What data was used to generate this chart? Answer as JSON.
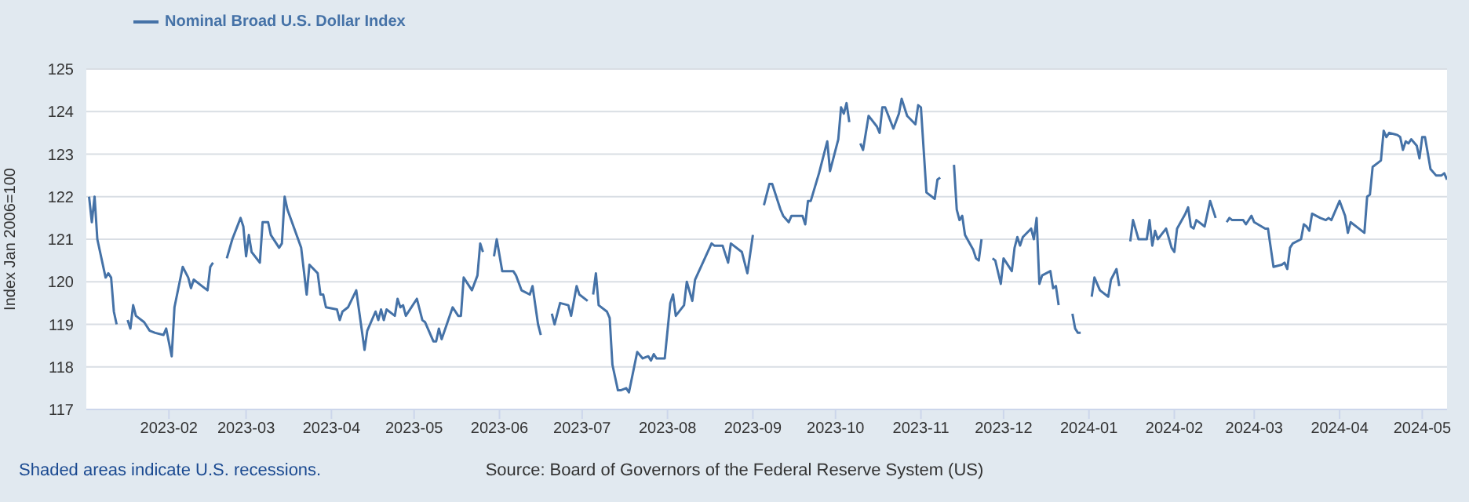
{
  "chart_data": {
    "type": "line",
    "ylabel": "Index Jan 2006=100",
    "x": [
      "2023-01-03",
      "2023-01-04",
      "2023-01-05",
      "2023-01-06",
      "2023-01-09",
      "2023-01-10",
      "2023-01-11",
      "2023-01-12",
      "2023-01-13",
      "2023-01-16",
      "2023-01-17",
      "2023-01-18",
      "2023-01-19",
      "2023-01-20",
      "2023-01-23",
      "2023-01-25",
      "2023-01-27",
      "2023-01-30",
      "2023-01-31",
      "2023-02-02",
      "2023-02-03",
      "2023-02-06",
      "2023-02-08",
      "2023-02-09",
      "2023-02-10",
      "2023-02-15",
      "2023-02-16",
      "2023-02-17",
      "2023-02-20",
      "2023-02-22",
      "2023-02-24",
      "2023-02-27",
      "2023-02-28",
      "2023-03-01",
      "2023-03-02",
      "2023-03-03",
      "2023-03-06",
      "2023-03-07",
      "2023-03-09",
      "2023-03-10",
      "2023-03-13",
      "2023-03-14",
      "2023-03-15",
      "2023-03-16",
      "2023-03-21",
      "2023-03-23",
      "2023-03-24",
      "2023-03-27",
      "2023-03-28",
      "2023-03-29",
      "2023-03-30",
      "2023-04-03",
      "2023-04-04",
      "2023-04-05",
      "2023-04-07",
      "2023-04-10",
      "2023-04-13",
      "2023-04-14",
      "2023-04-17",
      "2023-04-18",
      "2023-04-19",
      "2023-04-20",
      "2023-04-21",
      "2023-04-24",
      "2023-04-25",
      "2023-04-26",
      "2023-04-27",
      "2023-04-28",
      "2023-05-02",
      "2023-05-04",
      "2023-05-05",
      "2023-05-08",
      "2023-05-09",
      "2023-05-10",
      "2023-05-11",
      "2023-05-15",
      "2023-05-17",
      "2023-05-18",
      "2023-05-19",
      "2023-05-22",
      "2023-05-24",
      "2023-05-25",
      "2023-05-26",
      "2023-05-29",
      "2023-05-30",
      "2023-05-31",
      "2023-06-02",
      "2023-06-06",
      "2023-06-07",
      "2023-06-09",
      "2023-06-12",
      "2023-06-13",
      "2023-06-15",
      "2023-06-16",
      "2023-06-19",
      "2023-06-20",
      "2023-06-21",
      "2023-06-23",
      "2023-06-26",
      "2023-06-27",
      "2023-06-29",
      "2023-06-30",
      "2023-07-03",
      "2023-07-04",
      "2023-07-05",
      "2023-07-06",
      "2023-07-07",
      "2023-07-10",
      "2023-07-11",
      "2023-07-12",
      "2023-07-14",
      "2023-07-15",
      "2023-07-17",
      "2023-07-18",
      "2023-07-21",
      "2023-07-23",
      "2023-07-25",
      "2023-07-26",
      "2023-07-27",
      "2023-07-28",
      "2023-07-31",
      "2023-08-02",
      "2023-08-03",
      "2023-08-04",
      "2023-08-07",
      "2023-08-08",
      "2023-08-10",
      "2023-08-11",
      "2023-08-17",
      "2023-08-18",
      "2023-08-21",
      "2023-08-23",
      "2023-08-24",
      "2023-08-28",
      "2023-08-30",
      "2023-09-01",
      "2023-09-04",
      "2023-09-05",
      "2023-09-07",
      "2023-09-08",
      "2023-09-11",
      "2023-09-12",
      "2023-09-14",
      "2023-09-15",
      "2023-09-19",
      "2023-09-20",
      "2023-09-21",
      "2023-09-22",
      "2023-09-25",
      "2023-09-28",
      "2023-09-29",
      "2023-10-02",
      "2023-10-03",
      "2023-10-04",
      "2023-10-05",
      "2023-10-06",
      "2023-10-09",
      "2023-10-10",
      "2023-10-11",
      "2023-10-13",
      "2023-10-16",
      "2023-10-17",
      "2023-10-18",
      "2023-10-19",
      "2023-10-22",
      "2023-10-24",
      "2023-10-25",
      "2023-10-27",
      "2023-10-30",
      "2023-10-31",
      "2023-11-01",
      "2023-11-03",
      "2023-11-06",
      "2023-11-07",
      "2023-11-08",
      "2023-11-10",
      "2023-11-13",
      "2023-11-14",
      "2023-11-15",
      "2023-11-16",
      "2023-11-17",
      "2023-11-20",
      "2023-11-21",
      "2023-11-22",
      "2023-11-23",
      "2023-11-24",
      "2023-11-27",
      "2023-11-28",
      "2023-11-30",
      "2023-12-01",
      "2023-12-04",
      "2023-12-05",
      "2023-12-06",
      "2023-12-07",
      "2023-12-08",
      "2023-12-11",
      "2023-12-12",
      "2023-12-13",
      "2023-12-14",
      "2023-12-15",
      "2023-12-18",
      "2023-12-19",
      "2023-12-20",
      "2023-12-21",
      "2023-12-25",
      "2023-12-26",
      "2023-12-27",
      "2023-12-28",
      "2023-12-29",
      "2024-01-01",
      "2024-01-02",
      "2024-01-03",
      "2024-01-05",
      "2024-01-08",
      "2024-01-09",
      "2024-01-11",
      "2024-01-12",
      "2024-01-15",
      "2024-01-16",
      "2024-01-17",
      "2024-01-19",
      "2024-01-22",
      "2024-01-23",
      "2024-01-24",
      "2024-01-25",
      "2024-01-26",
      "2024-01-29",
      "2024-01-31",
      "2024-02-01",
      "2024-02-02",
      "2024-02-05",
      "2024-02-06",
      "2024-02-07",
      "2024-02-08",
      "2024-02-09",
      "2024-02-12",
      "2024-02-14",
      "2024-02-15",
      "2024-02-16",
      "2024-02-19",
      "2024-02-20",
      "2024-02-21",
      "2024-02-22",
      "2024-02-26",
      "2024-02-27",
      "2024-02-29",
      "2024-03-01",
      "2024-03-05",
      "2024-03-06",
      "2024-03-08",
      "2024-03-11",
      "2024-03-12",
      "2024-03-13",
      "2024-03-14",
      "2024-03-15",
      "2024-03-18",
      "2024-03-19",
      "2024-03-20",
      "2024-03-21",
      "2024-03-22",
      "2024-03-25",
      "2024-03-27",
      "2024-03-28",
      "2024-03-29",
      "2024-04-01",
      "2024-04-03",
      "2024-04-04",
      "2024-04-05",
      "2024-04-08",
      "2024-04-10",
      "2024-04-11",
      "2024-04-12",
      "2024-04-13",
      "2024-04-15",
      "2024-04-16",
      "2024-04-17",
      "2024-04-18",
      "2024-04-19",
      "2024-04-22",
      "2024-04-23",
      "2024-04-24",
      "2024-04-25",
      "2024-04-26",
      "2024-04-27",
      "2024-04-29",
      "2024-04-30",
      "2024-05-01",
      "2024-05-02",
      "2024-05-04",
      "2024-05-06",
      "2024-05-08",
      "2024-05-09",
      "2024-05-10"
    ],
    "series": [
      {
        "name": "Nominal Broad U.S. Dollar Index",
        "color": "#4572a7",
        "values": [
          122.0,
          121.4,
          122.0,
          121.0,
          120.1,
          120.2,
          120.1,
          119.3,
          119.0,
          null,
          119.1,
          118.9,
          119.45,
          119.2,
          119.05,
          118.85,
          118.8,
          118.75,
          118.9,
          118.25,
          119.4,
          120.35,
          120.1,
          119.85,
          120.05,
          119.8,
          120.35,
          120.45,
          null,
          120.55,
          121.0,
          121.5,
          121.3,
          120.6,
          121.1,
          120.7,
          120.45,
          121.4,
          121.4,
          121.1,
          120.8,
          120.9,
          122.0,
          121.7,
          120.8,
          119.7,
          120.4,
          120.2,
          119.7,
          119.7,
          119.4,
          119.35,
          119.1,
          119.3,
          119.4,
          119.8,
          118.4,
          118.85,
          119.3,
          119.1,
          119.35,
          119.1,
          119.35,
          119.2,
          119.6,
          119.4,
          119.45,
          119.2,
          119.6,
          119.1,
          119.05,
          118.6,
          118.6,
          118.9,
          118.65,
          119.4,
          119.2,
          119.2,
          120.1,
          119.8,
          120.15,
          120.9,
          120.7,
          null,
          120.6,
          121.0,
          120.25,
          120.25,
          120.15,
          119.8,
          119.7,
          119.9,
          119.0,
          118.75,
          null,
          119.25,
          119.0,
          119.5,
          119.45,
          119.2,
          119.9,
          119.7,
          119.55,
          null,
          119.7,
          120.2,
          119.45,
          119.3,
          119.15,
          118.05,
          117.45,
          117.45,
          117.5,
          117.4,
          118.35,
          118.2,
          118.25,
          118.15,
          118.3,
          118.2,
          118.2,
          119.5,
          119.7,
          119.2,
          119.45,
          120.0,
          119.55,
          120.05,
          120.9,
          120.85,
          120.85,
          120.45,
          120.9,
          120.7,
          120.2,
          121.1,
          null,
          121.8,
          122.3,
          122.3,
          121.7,
          121.55,
          121.4,
          121.55,
          121.55,
          121.35,
          121.9,
          121.9,
          122.55,
          123.3,
          122.6,
          123.35,
          124.1,
          123.95,
          124.2,
          123.75,
          null,
          123.25,
          123.1,
          123.9,
          123.65,
          123.5,
          124.1,
          124.1,
          123.6,
          123.95,
          124.3,
          123.9,
          123.7,
          124.15,
          124.1,
          122.1,
          121.95,
          122.4,
          122.45,
          null,
          122.75,
          121.7,
          121.45,
          121.55,
          121.1,
          120.75,
          120.55,
          120.5,
          121.0,
          null,
          120.55,
          120.5,
          119.95,
          120.55,
          120.25,
          120.8,
          121.05,
          120.85,
          121.05,
          121.25,
          121.0,
          121.5,
          119.95,
          120.15,
          120.25,
          119.85,
          119.9,
          119.45,
          null,
          119.25,
          118.9,
          118.8,
          118.8,
          null,
          119.65,
          120.1,
          119.8,
          119.65,
          120.05,
          120.3,
          119.9,
          null,
          120.95,
          121.45,
          121.0,
          121.0,
          121.45,
          120.85,
          121.2,
          121.0,
          121.25,
          120.8,
          120.7,
          121.25,
          121.6,
          121.75,
          121.3,
          121.25,
          121.45,
          121.3,
          121.9,
          121.7,
          121.5,
          null,
          121.4,
          121.5,
          121.45,
          121.45,
          121.35,
          121.55,
          121.4,
          121.25,
          121.25,
          120.35,
          120.4,
          120.45,
          120.3,
          120.8,
          120.9,
          121.0,
          121.35,
          121.3,
          121.2,
          121.6,
          121.5,
          121.45,
          121.5,
          121.45,
          121.9,
          121.55,
          121.15,
          121.4,
          121.25,
          121.15,
          122.0,
          122.05,
          122.7,
          122.8,
          122.85,
          123.55,
          123.4,
          123.5,
          123.45,
          123.4,
          123.1,
          123.3,
          123.25,
          123.35,
          123.2,
          122.9,
          123.4,
          123.4,
          122.65,
          122.5,
          122.5,
          122.55,
          122.4
        ]
      }
    ],
    "xlim": [
      "2023-01-02",
      "2024-05-10"
    ],
    "xticks": [
      {
        "value": "2023-02-01",
        "label": "2023-02"
      },
      {
        "value": "2023-03-01",
        "label": "2023-03"
      },
      {
        "value": "2023-04-01",
        "label": "2023-04"
      },
      {
        "value": "2023-05-01",
        "label": "2023-05"
      },
      {
        "value": "2023-06-01",
        "label": "2023-06"
      },
      {
        "value": "2023-07-01",
        "label": "2023-07"
      },
      {
        "value": "2023-08-01",
        "label": "2023-08"
      },
      {
        "value": "2023-09-01",
        "label": "2023-09"
      },
      {
        "value": "2023-10-01",
        "label": "2023-10"
      },
      {
        "value": "2023-11-01",
        "label": "2023-11"
      },
      {
        "value": "2023-12-01",
        "label": "2023-12"
      },
      {
        "value": "2024-01-01",
        "label": "2024-01"
      },
      {
        "value": "2024-02-01",
        "label": "2024-02"
      },
      {
        "value": "2024-03-01",
        "label": "2024-03"
      },
      {
        "value": "2024-04-01",
        "label": "2024-04"
      },
      {
        "value": "2024-05-01",
        "label": "2024-05"
      }
    ],
    "ylim": [
      117,
      125
    ],
    "yticks": [
      117,
      118,
      119,
      120,
      121,
      122,
      123,
      124,
      125
    ],
    "grid": "y",
    "legend": "top left",
    "marker": "none",
    "line_style": "solid",
    "annotations": [
      "Shaded areas indicate U.S. recessions.",
      "Source: Board of Governors of the Federal Reserve System (US)"
    ]
  }
}
